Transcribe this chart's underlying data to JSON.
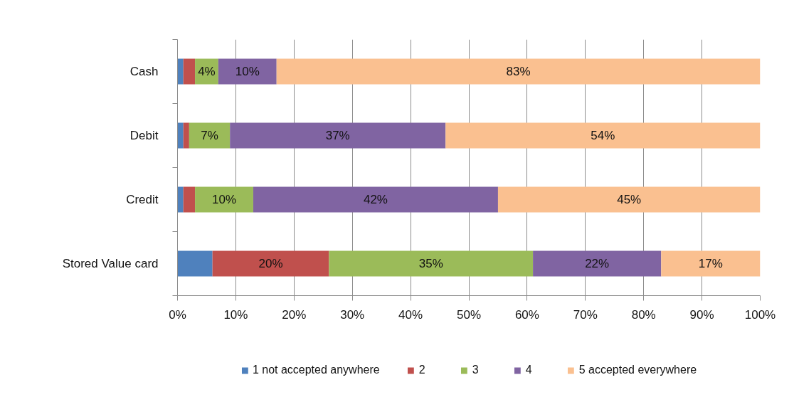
{
  "chart_data": {
    "type": "bar",
    "orientation": "horizontal",
    "stacked": true,
    "categories": [
      "Cash",
      "Debit",
      "Credit",
      "Stored Value card"
    ],
    "series": [
      {
        "name": "1 not accepted anywhere",
        "color": "#4f81bd",
        "values": [
          1,
          1,
          1,
          6
        ]
      },
      {
        "name": "2",
        "color": "#c0504d",
        "values": [
          2,
          1,
          2,
          20
        ],
        "value_labels": [
          null,
          null,
          null,
          "20%"
        ]
      },
      {
        "name": "3",
        "color": "#9bbb59",
        "values": [
          4,
          7,
          10,
          35
        ],
        "value_labels": [
          "4%",
          "7%",
          "10%",
          "35%"
        ]
      },
      {
        "name": "4",
        "color": "#8064a2",
        "values": [
          10,
          37,
          42,
          22
        ],
        "value_labels": [
          "10%",
          "37%",
          "42%",
          "22%"
        ]
      },
      {
        "name": "5 accepted everywhere",
        "color": "#fac090",
        "values": [
          83,
          54,
          45,
          17
        ],
        "value_labels": [
          "83%",
          "54%",
          "45%",
          "17%"
        ]
      }
    ],
    "xlim": [
      0,
      100
    ],
    "xticks": [
      {
        "value": 0,
        "label": "0%"
      },
      {
        "value": 10,
        "label": "10%"
      },
      {
        "value": 20,
        "label": "20%"
      },
      {
        "value": 30,
        "label": "30%"
      },
      {
        "value": 40,
        "label": "40%"
      },
      {
        "value": 50,
        "label": "50%"
      },
      {
        "value": 60,
        "label": "60%"
      },
      {
        "value": 70,
        "label": "70%"
      },
      {
        "value": 80,
        "label": "80%"
      },
      {
        "value": 90,
        "label": "90%"
      },
      {
        "value": 100,
        "label": "100%"
      }
    ],
    "grid": "x",
    "legend": "bottom"
  }
}
